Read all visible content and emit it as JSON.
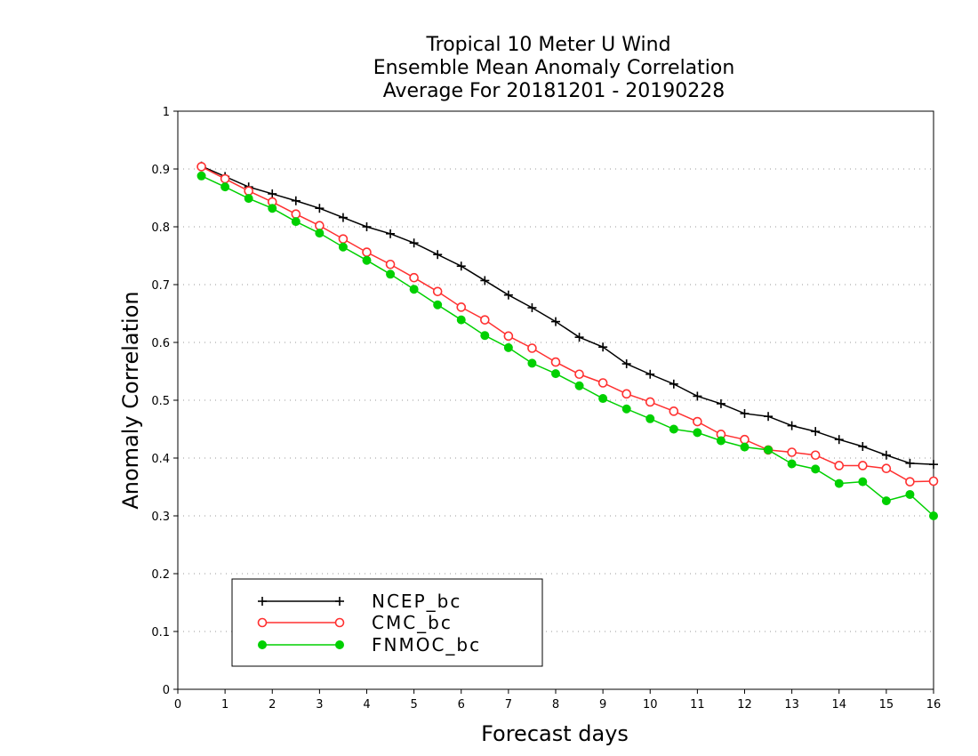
{
  "chart_data": {
    "type": "line",
    "title": [
      "Tropical 10 Meter U Wind",
      "Ensemble Mean Anomaly Correlation",
      "Average For 20181201 - 20190228"
    ],
    "xlabel": "Forecast days",
    "ylabel": "Anomaly Correlation",
    "xlim": [
      0,
      16
    ],
    "ylim": [
      0,
      1
    ],
    "xticks": [
      "0",
      "1",
      "2",
      "3",
      "4",
      "5",
      "6",
      "7",
      "8",
      "9",
      "10",
      "11",
      "12",
      "13",
      "14",
      "15",
      "16"
    ],
    "yticks": [
      "0",
      "0.1",
      "0.2",
      "0.3",
      "0.4",
      "0.5",
      "0.6",
      "0.7",
      "0.8",
      "0.9",
      "1"
    ],
    "grid": "horizontal dotted",
    "legend_position": "bottom-left",
    "x": [
      0.5,
      1,
      1.5,
      2,
      2.5,
      3,
      3.5,
      4,
      4.5,
      5,
      5.5,
      6,
      6.5,
      7,
      7.5,
      8,
      8.5,
      9,
      9.5,
      10,
      10.5,
      11,
      11.5,
      12,
      12.5,
      13,
      13.5,
      14,
      14.5,
      15,
      15.5,
      16
    ],
    "series": [
      {
        "name": "NCEP_bc",
        "color": "#000000",
        "marker": "plus",
        "values": [
          0.905,
          0.887,
          0.869,
          0.857,
          0.845,
          0.832,
          0.816,
          0.8,
          0.788,
          0.772,
          0.752,
          0.732,
          0.707,
          0.682,
          0.66,
          0.636,
          0.609,
          0.592,
          0.563,
          0.545,
          0.528,
          0.507,
          0.494,
          0.477,
          0.472,
          0.456,
          0.446,
          0.432,
          0.42,
          0.405,
          0.391,
          0.389
        ]
      },
      {
        "name": "CMC_bc",
        "color": "#ff3030",
        "marker": "open-circle",
        "values": [
          0.904,
          0.883,
          0.862,
          0.843,
          0.822,
          0.802,
          0.779,
          0.756,
          0.735,
          0.712,
          0.688,
          0.661,
          0.639,
          0.611,
          0.59,
          0.566,
          0.545,
          0.53,
          0.511,
          0.497,
          0.481,
          0.463,
          0.441,
          0.432,
          0.414,
          0.41,
          0.405,
          0.387,
          0.387,
          0.382,
          0.359,
          0.36
        ]
      },
      {
        "name": "FNMOC_bc",
        "color": "#00d000",
        "marker": "filled-circle",
        "values": [
          0.888,
          0.869,
          0.849,
          0.832,
          0.809,
          0.789,
          0.765,
          0.742,
          0.718,
          0.692,
          0.665,
          0.639,
          0.612,
          0.591,
          0.564,
          0.546,
          0.525,
          0.503,
          0.485,
          0.468,
          0.45,
          0.444,
          0.43,
          0.419,
          0.414,
          0.39,
          0.381,
          0.356,
          0.359,
          0.326,
          0.337,
          0.3
        ]
      }
    ]
  }
}
